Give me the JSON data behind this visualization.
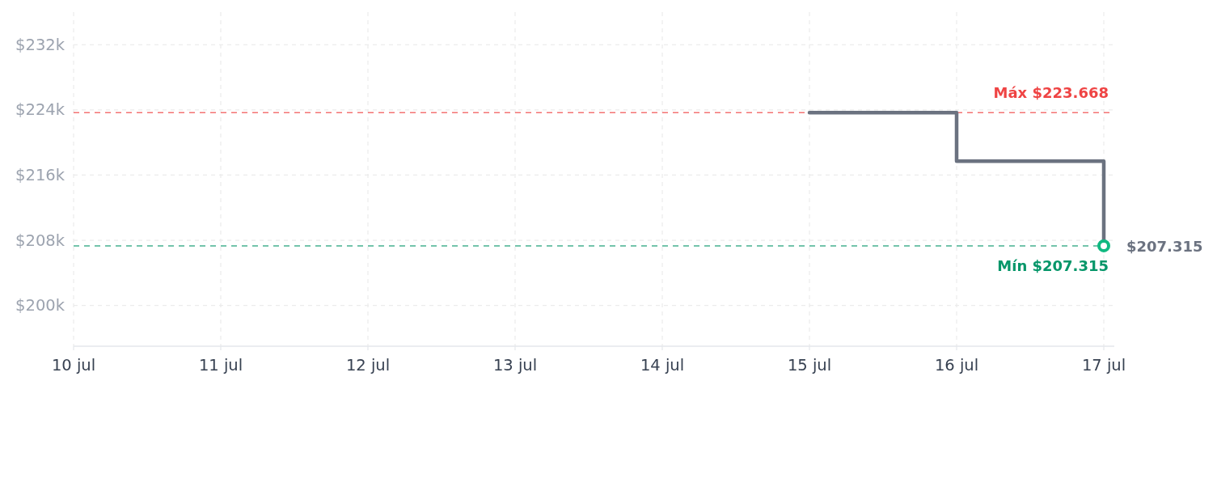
{
  "chart_data": {
    "type": "step",
    "x": [
      "--07-15",
      "--07-16",
      "--07-17"
    ],
    "series": [
      {
        "color": "#6b7280",
        "values": [
          223668,
          217700,
          207315
        ],
        "value_labels": [
          null,
          null,
          "$207.315"
        ]
      },
      {
        "type": "scatter",
        "color": "#10b981",
        "x": [
          "--07-17"
        ],
        "values": [
          207315
        ],
        "marker": "circle"
      }
    ],
    "xlim": [
      "--07-10",
      "--07-17"
    ],
    "xticks": [
      {
        "value": "--07-10",
        "label": "10 jul"
      },
      {
        "value": "--07-11",
        "label": "11 jul"
      },
      {
        "value": "--07-12",
        "label": "12 jul"
      },
      {
        "value": "--07-13",
        "label": "13 jul"
      },
      {
        "value": "--07-14",
        "label": "14 jul"
      },
      {
        "value": "--07-15",
        "label": "15 jul"
      },
      {
        "value": "--07-16",
        "label": "16 jul"
      },
      {
        "value": "--07-17",
        "label": "17 jul"
      }
    ],
    "ylim": [
      195000,
      236000
    ],
    "yticks": [
      {
        "value": 200000,
        "label": "$200k"
      },
      {
        "value": 208000,
        "label": "$208k"
      },
      {
        "value": 216000,
        "label": "$216k"
      },
      {
        "value": 224000,
        "label": "$224k"
      },
      {
        "value": 232000,
        "label": "$232k"
      }
    ],
    "grid": true,
    "ref_lines": [
      {
        "axis": "y",
        "value": 223668,
        "label": "Máx $223.668",
        "color": "#ef4444",
        "line_style": "dashed"
      },
      {
        "axis": "y",
        "value": 207315,
        "label": "Mín $207.315",
        "color": "#059669",
        "line_style": "dashed"
      }
    ]
  }
}
